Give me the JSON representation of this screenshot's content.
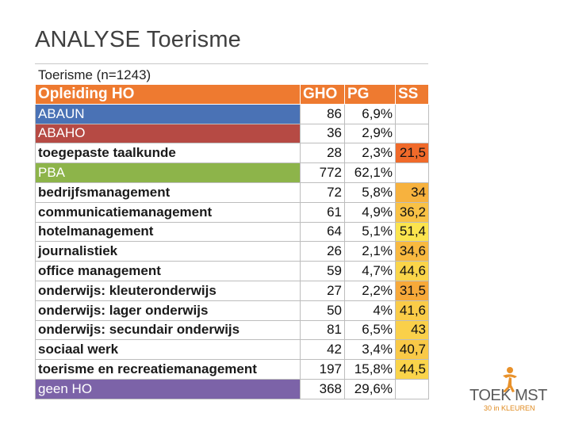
{
  "slide": {
    "title": "ANALYSE Toerisme"
  },
  "table": {
    "caption": "Toerisme (n=1243)",
    "header": {
      "name": "Opleiding HO",
      "gho": "GHO",
      "pg": "PG",
      "ss": "SS"
    },
    "rows": [
      {
        "name": "ABAUN",
        "gho": "86",
        "pg": "6,9%",
        "ss": "",
        "type": "cat",
        "bg": "#4a72b5"
      },
      {
        "name": "ABAHO",
        "gho": "36",
        "pg": "2,9%",
        "ss": "",
        "type": "cat",
        "bg": "#b64a44"
      },
      {
        "name": "toegepaste taalkunde",
        "gho": "28",
        "pg": "2,3%",
        "ss": "21,5",
        "type": "row",
        "ss_bg": "#f06a2a"
      },
      {
        "name": "PBA",
        "gho": "772",
        "pg": "62,1%",
        "ss": "",
        "type": "cat",
        "bg": "#8db44a"
      },
      {
        "name": "bedrijfsmanagement",
        "gho": "72",
        "pg": "5,8%",
        "ss": "34",
        "type": "row",
        "ss_bg": "#f7b23e"
      },
      {
        "name": "communicatiemanagement",
        "gho": "61",
        "pg": "4,9%",
        "ss": "36,2",
        "type": "row",
        "ss_bg": "#f9c246"
      },
      {
        "name": "hotelmanagement",
        "gho": "64",
        "pg": "5,1%",
        "ss": "51,4",
        "type": "row",
        "ss_bg": "#fbe44e"
      },
      {
        "name": "journalistiek",
        "gho": "26",
        "pg": "2,1%",
        "ss": "34,6",
        "type": "row",
        "ss_bg": "#f8b940"
      },
      {
        "name": "office management",
        "gho": "59",
        "pg": "4,7%",
        "ss": "44,6",
        "type": "row",
        "ss_bg": "#fad54a"
      },
      {
        "name": "onderwijs: kleuteronderwijs",
        "gho": "27",
        "pg": "2,2%",
        "ss": "31,5",
        "type": "row",
        "ss_bg": "#f7a93a"
      },
      {
        "name": "onderwijs: lager onderwijs",
        "gho": "50",
        "pg": "4%",
        "ss": "41,6",
        "type": "row",
        "ss_bg": "#facc48"
      },
      {
        "name": "onderwijs: secundair onderwijs",
        "gho": "81",
        "pg": "6,5%",
        "ss": "43",
        "type": "row",
        "ss_bg": "#fad04a"
      },
      {
        "name": "sociaal werk",
        "gho": "42",
        "pg": "3,4%",
        "ss": "40,7",
        "type": "row",
        "ss_bg": "#f9c947"
      },
      {
        "name": "toerisme en recreatiemanagement",
        "gho": "197",
        "pg": "15,8%",
        "ss": "44,5",
        "type": "row",
        "ss_bg": "#fad44a"
      },
      {
        "name": "geen HO",
        "gho": "368",
        "pg": "29,6%",
        "ss": "",
        "type": "cat",
        "bg": "#7c63a8"
      }
    ]
  },
  "logo": {
    "text": "TOEK MST",
    "sub": "30 in KLEUREN",
    "icon": "running-figure-icon"
  }
}
